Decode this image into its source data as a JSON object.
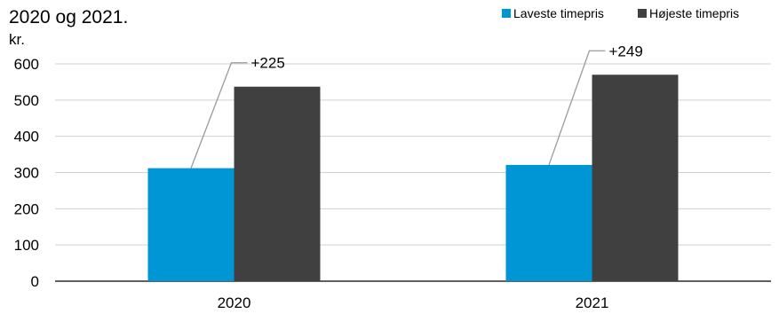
{
  "chart_data": {
    "type": "bar",
    "title": "2020 og 2021.",
    "ylabel": "kr.",
    "categories": [
      "2020",
      "2021"
    ],
    "series": [
      {
        "name": "Laveste timepris",
        "values": [
          312,
          321
        ],
        "color": "#0096d6"
      },
      {
        "name": "Højeste timepris",
        "values": [
          537,
          570
        ],
        "color": "#404040"
      }
    ],
    "ylim": [
      0,
      600
    ],
    "yticks": [
      0,
      100,
      200,
      300,
      400,
      500,
      600
    ],
    "grid": true,
    "legend_position": "top-right",
    "annotations": [
      {
        "category": "2020",
        "text": "+225"
      },
      {
        "category": "2021",
        "text": "+249"
      }
    ]
  }
}
